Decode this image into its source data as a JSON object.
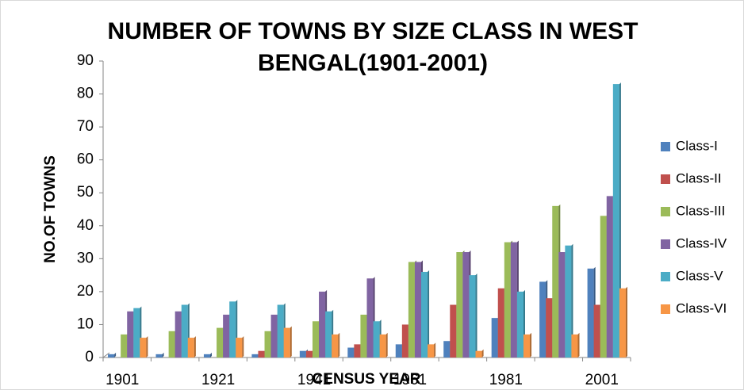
{
  "chart_data": {
    "type": "bar",
    "title": "NUMBER OF TOWNS BY SIZE CLASS IN WEST BENGAL(1901-2001)",
    "x_label": "CENSUS YEAR",
    "y_label": "NO.OF TOWNS",
    "categories": [
      "1901",
      null,
      "1921",
      null,
      "1941",
      null,
      "1961",
      null,
      "1981",
      null,
      "2001"
    ],
    "series": [
      {
        "name": "Class-I",
        "color": "#4f81bd",
        "values": [
          1,
          1,
          1,
          1,
          2,
          3,
          4,
          5,
          12,
          23,
          27
        ]
      },
      {
        "name": "Class-II",
        "color": "#c0504d",
        "values": [
          0,
          0,
          0,
          2,
          2,
          4,
          10,
          16,
          21,
          18,
          16
        ]
      },
      {
        "name": "Class-III",
        "color": "#9bbb59",
        "values": [
          7,
          8,
          9,
          8,
          11,
          13,
          29,
          32,
          35,
          46,
          43
        ]
      },
      {
        "name": "Class-IV",
        "color": "#8064a2",
        "values": [
          14,
          14,
          13,
          13,
          20,
          24,
          29,
          32,
          35,
          32,
          49
        ]
      },
      {
        "name": "Class-V",
        "color": "#4bacc6",
        "values": [
          15,
          16,
          17,
          16,
          14,
          11,
          26,
          25,
          20,
          34,
          83
        ]
      },
      {
        "name": "Class-VI",
        "color": "#f79646",
        "values": [
          6,
          6,
          6,
          9,
          7,
          7,
          4,
          2,
          7,
          7,
          21
        ]
      }
    ],
    "ylim": [
      0,
      90
    ],
    "yticks": [
      0,
      10,
      20,
      30,
      40,
      50,
      60,
      70,
      80,
      90
    ],
    "legend": "right"
  }
}
